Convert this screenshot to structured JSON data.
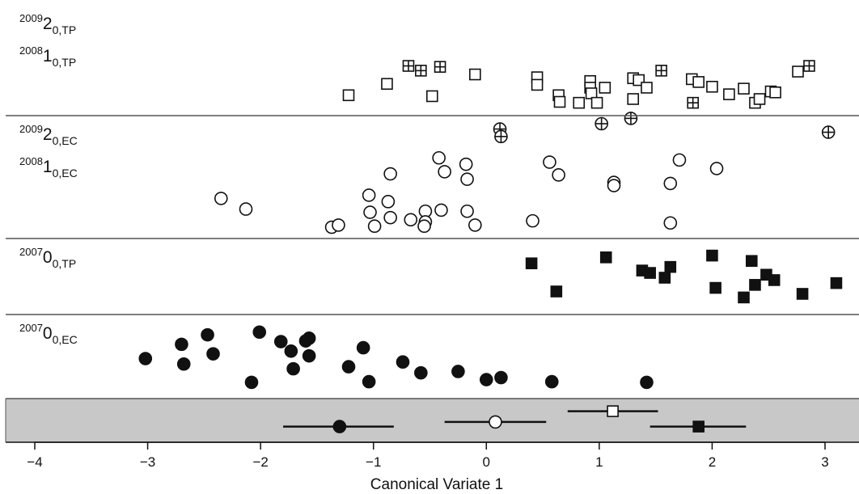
{
  "chart_data": {
    "type": "scatter",
    "title": "",
    "xlabel": "Canonical Variate 1",
    "ylabel": "",
    "xlim": [
      -4,
      3
    ],
    "x_ticks": [
      "−4",
      "−3",
      "−2",
      "−1",
      "0",
      "1",
      "2",
      "3"
    ],
    "grid": false,
    "panels": [
      {
        "name": "TP 2008/2009",
        "labels": [
          {
            "sup": "2009",
            "base": "2",
            "sub": "0,TP"
          },
          {
            "sup": "2008",
            "base": "1",
            "sub": "0,TP"
          }
        ],
        "series": [
          {
            "marker": "open-square",
            "points": [
              [
                -1.22,
                0.13
              ],
              [
                -0.88,
                0.25
              ],
              [
                -0.48,
                0.12
              ],
              [
                -0.1,
                0.35
              ],
              [
                0.45,
                0.32
              ],
              [
                0.45,
                0.24
              ],
              [
                0.64,
                0.13
              ],
              [
                0.65,
                0.06
              ],
              [
                0.82,
                0.05
              ],
              [
                0.92,
                0.28
              ],
              [
                0.92,
                0.21
              ],
              [
                0.93,
                0.15
              ],
              [
                0.98,
                0.05
              ],
              [
                1.05,
                0.21
              ],
              [
                1.3,
                0.31
              ],
              [
                1.3,
                0.09
              ],
              [
                1.35,
                0.29
              ],
              [
                1.42,
                0.21
              ],
              [
                1.82,
                0.3
              ],
              [
                1.88,
                0.27
              ],
              [
                2.0,
                0.22
              ],
              [
                2.15,
                0.14
              ],
              [
                2.28,
                0.2
              ],
              [
                2.38,
                0.05
              ],
              [
                2.42,
                0.09
              ],
              [
                2.52,
                0.17
              ],
              [
                2.56,
                0.16
              ],
              [
                2.76,
                0.38
              ]
            ]
          },
          {
            "marker": "crossed-square",
            "points": [
              [
                -0.69,
                0.44
              ],
              [
                -0.58,
                0.39
              ],
              [
                -0.41,
                0.43
              ],
              [
                1.55,
                0.39
              ],
              [
                1.83,
                0.05
              ],
              [
                2.86,
                0.44
              ]
            ]
          }
        ]
      },
      {
        "name": "EC 2008/2009",
        "labels": [
          {
            "sup": "2009",
            "base": "2",
            "sub": "0,EC"
          },
          {
            "sup": "2008",
            "base": "1",
            "sub": "0,EC"
          }
        ],
        "series": [
          {
            "marker": "open-circle",
            "points": [
              [
                -2.35,
                0.3
              ],
              [
                -2.13,
                0.2
              ],
              [
                -1.37,
                0.03
              ],
              [
                -1.31,
                0.05
              ],
              [
                -1.04,
                0.33
              ],
              [
                -1.03,
                0.17
              ],
              [
                -0.99,
                0.04
              ],
              [
                -0.85,
                0.53
              ],
              [
                -0.87,
                0.27
              ],
              [
                -0.85,
                0.12
              ],
              [
                -0.67,
                0.1
              ],
              [
                -0.54,
                0.18
              ],
              [
                -0.54,
                0.08
              ],
              [
                -0.55,
                0.04
              ],
              [
                -0.42,
                0.68
              ],
              [
                -0.37,
                0.55
              ],
              [
                -0.4,
                0.19
              ],
              [
                -0.18,
                0.62
              ],
              [
                -0.17,
                0.48
              ],
              [
                -0.17,
                0.18
              ],
              [
                -0.1,
                0.05
              ],
              [
                0.41,
                0.09
              ],
              [
                0.56,
                0.64
              ],
              [
                0.64,
                0.52
              ],
              [
                1.13,
                0.45
              ],
              [
                1.13,
                0.42
              ],
              [
                1.63,
                0.44
              ],
              [
                1.63,
                0.07
              ],
              [
                1.71,
                0.66
              ],
              [
                2.04,
                0.58
              ]
            ]
          },
          {
            "marker": "crossed-circle",
            "points": [
              [
                0.12,
                0.95
              ],
              [
                0.13,
                0.88
              ],
              [
                1.02,
                1.0
              ],
              [
                1.28,
                1.05
              ],
              [
                3.03,
                0.92
              ]
            ]
          }
        ]
      },
      {
        "name": "TP 2007",
        "labels": [
          {
            "sup": "2007",
            "base": "0",
            "sub": "0,TP"
          }
        ],
        "series": [
          {
            "marker": "filled-square",
            "points": [
              [
                0.4,
                0.72
              ],
              [
                0.62,
                0.25
              ],
              [
                1.06,
                0.82
              ],
              [
                1.38,
                0.6
              ],
              [
                1.45,
                0.56
              ],
              [
                1.58,
                0.48
              ],
              [
                1.63,
                0.66
              ],
              [
                2.0,
                0.85
              ],
              [
                2.03,
                0.31
              ],
              [
                2.28,
                0.15
              ],
              [
                2.35,
                0.76
              ],
              [
                2.38,
                0.36
              ],
              [
                2.48,
                0.53
              ],
              [
                2.55,
                0.44
              ],
              [
                2.8,
                0.21
              ],
              [
                3.1,
                0.39
              ]
            ]
          }
        ]
      },
      {
        "name": "EC 2007",
        "labels": [
          {
            "sup": "2007",
            "base": "0",
            "sub": "0,EC"
          }
        ],
        "series": [
          {
            "marker": "filled-circle",
            "points": [
              [
                -3.02,
                0.47
              ],
              [
                -2.7,
                0.68
              ],
              [
                -2.68,
                0.39
              ],
              [
                -2.47,
                0.82
              ],
              [
                -2.42,
                0.54
              ],
              [
                -2.08,
                0.12
              ],
              [
                -2.01,
                0.86
              ],
              [
                -1.82,
                0.72
              ],
              [
                -1.73,
                0.58
              ],
              [
                -1.71,
                0.32
              ],
              [
                -1.6,
                0.73
              ],
              [
                -1.57,
                0.51
              ],
              [
                -1.57,
                0.77
              ],
              [
                -1.22,
                0.35
              ],
              [
                -1.09,
                0.63
              ],
              [
                -1.04,
                0.13
              ],
              [
                -0.74,
                0.42
              ],
              [
                -0.58,
                0.26
              ],
              [
                -0.25,
                0.28
              ],
              [
                0.0,
                0.16
              ],
              [
                0.13,
                0.19
              ],
              [
                0.58,
                0.13
              ],
              [
                1.42,
                0.12
              ]
            ]
          }
        ]
      },
      {
        "name": "group means",
        "labels": [],
        "background": "#c8c8c8",
        "series": [
          {
            "marker": "filled-circle",
            "points": [
              [
                -1.3,
                0.3
              ]
            ],
            "ci": [
              [
                -1.8,
                -0.82
              ]
            ]
          },
          {
            "marker": "open-circle",
            "points": [
              [
                0.08,
                0.45
              ]
            ],
            "ci": [
              [
                -0.37,
                0.53
              ]
            ]
          },
          {
            "marker": "open-square",
            "points": [
              [
                1.12,
                0.8
              ]
            ],
            "ci": [
              [
                0.72,
                1.52
              ]
            ]
          },
          {
            "marker": "filled-square",
            "points": [
              [
                1.88,
                0.3
              ]
            ],
            "ci": [
              [
                1.45,
                2.3
              ]
            ]
          }
        ]
      }
    ]
  }
}
